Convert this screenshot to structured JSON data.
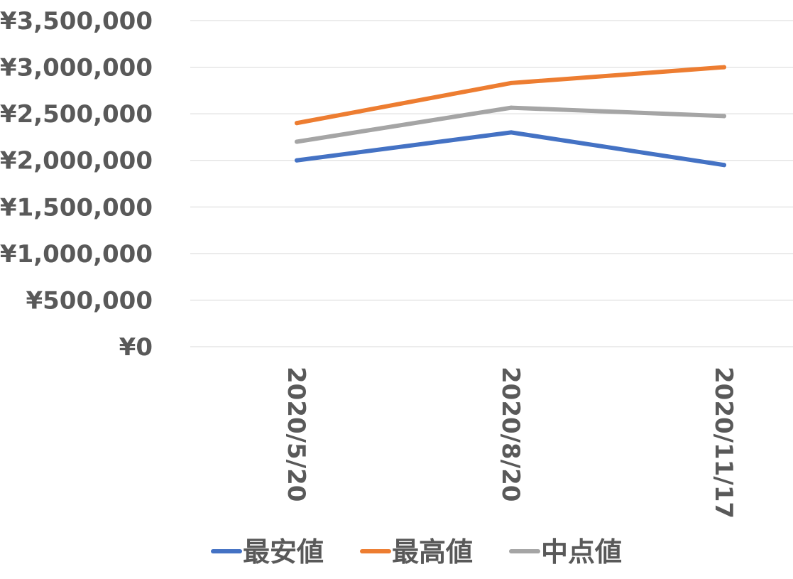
{
  "chart_data": {
    "type": "line",
    "categories": [
      "2020/5/20",
      "2020/8/20",
      "2020/11/17"
    ],
    "series": [
      {
        "name": "最安値",
        "color": "#4472c4",
        "values": [
          2000000,
          2300000,
          1950000
        ]
      },
      {
        "name": "最高値",
        "color": "#ed7d31",
        "values": [
          2400000,
          2830000,
          3000000
        ]
      },
      {
        "name": "中点値",
        "color": "#a5a5a5",
        "values": [
          2200000,
          2565000,
          2475000
        ]
      }
    ],
    "ylim": [
      0,
      3500000
    ],
    "yticks": [
      0,
      500000,
      1000000,
      1500000,
      2000000,
      2500000,
      3000000,
      3500000
    ],
    "ytick_labels": [
      "¥0",
      "¥500,000",
      "¥1,000,000",
      "¥1,500,000",
      "¥2,000,000",
      "¥2,500,000",
      "¥3,000,000",
      "¥3,500,000"
    ],
    "grid": true,
    "legend_position": "bottom"
  }
}
